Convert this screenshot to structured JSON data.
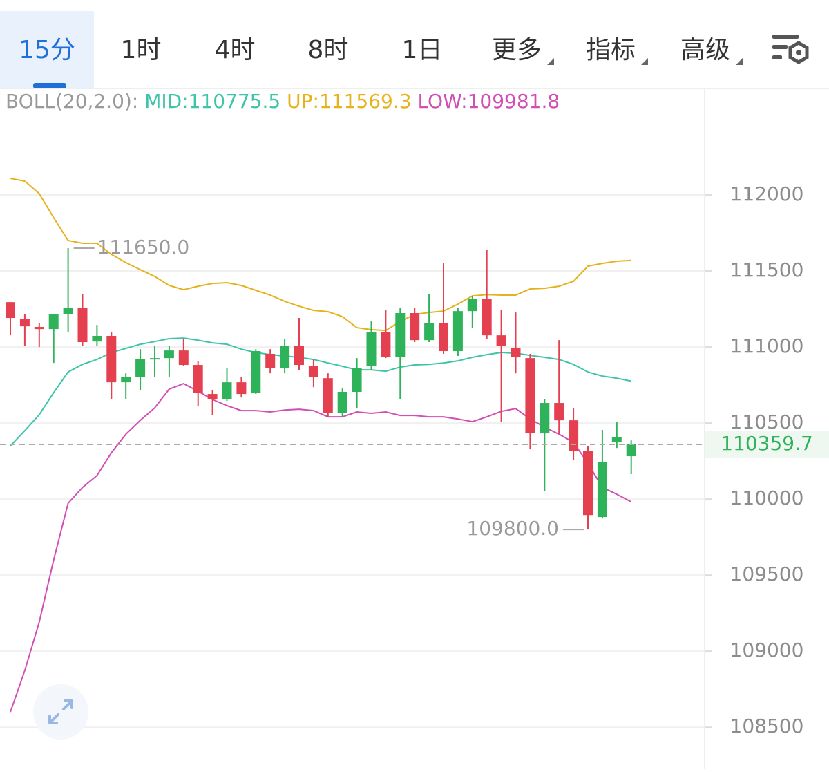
{
  "tabs": [
    {
      "label": "15分",
      "active": true
    },
    {
      "label": "1时"
    },
    {
      "label": "4时"
    },
    {
      "label": "8时"
    },
    {
      "label": "1日"
    },
    {
      "label": "更多",
      "menu": true
    },
    {
      "label": "指标",
      "menu": true
    },
    {
      "label": "高级",
      "menu": true
    }
  ],
  "chart_data": {
    "type": "candlestick",
    "indicator_label": "BOLL(20,2.0):",
    "up_color": "#2eb25a",
    "down_color": "#e5404f",
    "ylim": [
      108260,
      112700
    ],
    "yticks": [
      108500,
      109000,
      109500,
      110000,
      110500,
      111000,
      111500,
      112000
    ],
    "grid": true,
    "last_price": 110359.7,
    "annotations": [
      {
        "value": 111650,
        "label": "111650.0",
        "side": "high"
      },
      {
        "value": 109800,
        "label": "109800.0",
        "side": "low"
      }
    ],
    "candles": {
      "open": [
        111295,
        111186,
        111132,
        111118,
        111214,
        111259,
        111036,
        111073,
        110768,
        110805,
        110918,
        110927,
        110977,
        110882,
        110691,
        110655,
        110768,
        110700,
        110955,
        110864,
        111009,
        110873,
        110795,
        110568,
        110705,
        110873,
        111100,
        110932,
        111223,
        111045,
        111159,
        110973,
        111236,
        111318,
        111077,
        110995,
        110927,
        110432,
        110632,
        110518,
        110318,
        109882,
        110373,
        110282
      ],
      "high": [
        111295,
        111214,
        111155,
        111214,
        111650,
        111350,
        111145,
        111100,
        110827,
        110986,
        111009,
        111009,
        111055,
        110909,
        110714,
        110859,
        110805,
        110986,
        110986,
        111055,
        111191,
        110918,
        110827,
        110727,
        110927,
        111168,
        111245,
        111259,
        111259,
        111350,
        111555,
        111259,
        111336,
        111640,
        111245,
        111227,
        110955,
        110655,
        111045,
        110600,
        110350,
        110455,
        110509,
        110386
      ],
      "low": [
        111077,
        111009,
        111000,
        110895,
        111100,
        111009,
        111009,
        110655,
        110655,
        110714,
        110805,
        110805,
        110873,
        110609,
        110555,
        110645,
        110668,
        110691,
        110827,
        110827,
        110850,
        110736,
        110541,
        110541,
        110600,
        110850,
        110927,
        110659,
        111032,
        111032,
        110955,
        110941,
        111123,
        111055,
        110509,
        110827,
        110327,
        110055,
        110427,
        110259,
        109800,
        109873,
        110336,
        110164
      ],
      "close": [
        111191,
        111136,
        111118,
        111214,
        111259,
        111032,
        111073,
        110768,
        110805,
        110923,
        110927,
        110977,
        110882,
        110700,
        110655,
        110768,
        110691,
        110973,
        110864,
        111009,
        110882,
        110805,
        110568,
        110705,
        110864,
        111100,
        110932,
        111223,
        111045,
        111159,
        110973,
        111236,
        111318,
        111077,
        111009,
        110932,
        110432,
        110632,
        110518,
        110318,
        109895,
        110245,
        110409,
        110359.7
      ]
    },
    "series": [
      {
        "name": "UP:111569.3",
        "color": "#e6b21c",
        "values": [
          112109,
          112091,
          112009,
          111850,
          111700,
          111682,
          111682,
          111609,
          111555,
          111509,
          111464,
          111405,
          111377,
          111400,
          111418,
          111423,
          111405,
          111373,
          111341,
          111300,
          111268,
          111241,
          111232,
          111200,
          111127,
          111114,
          111109,
          111168,
          111214,
          111227,
          111236,
          111282,
          111336,
          111345,
          111341,
          111341,
          111382,
          111386,
          111400,
          111432,
          111532,
          111550,
          111564,
          111569.3
        ]
      },
      {
        "name": "MID:110775.5",
        "color": "#3ec4a8",
        "values": [
          110350,
          110450,
          110555,
          110700,
          110836,
          110886,
          110918,
          110964,
          110991,
          111018,
          111036,
          111055,
          111059,
          111045,
          111027,
          111018,
          110986,
          110964,
          110950,
          110941,
          110932,
          110918,
          110895,
          110873,
          110850,
          110850,
          110841,
          110868,
          110882,
          110886,
          110895,
          110909,
          110932,
          110950,
          110964,
          110959,
          110945,
          110932,
          110918,
          110886,
          110836,
          110809,
          110795,
          110775.5
        ]
      },
      {
        "name": "LOW:109981.8",
        "color": "#d14fb4",
        "values": [
          108600,
          108873,
          109191,
          109600,
          109973,
          110077,
          110155,
          110305,
          110427,
          110518,
          110600,
          110723,
          110759,
          110709,
          110655,
          110614,
          110582,
          110582,
          110573,
          110586,
          110591,
          110582,
          110541,
          110541,
          110573,
          110564,
          110573,
          110550,
          110550,
          110541,
          110541,
          110527,
          110509,
          110541,
          110577,
          110595,
          110527,
          110473,
          110427,
          110373,
          110236,
          110077,
          110032,
          109981.8
        ]
      }
    ]
  }
}
